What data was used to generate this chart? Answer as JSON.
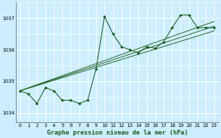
{
  "title": "Graphe pression niveau de la mer (hPa)",
  "bg_color": "#cceeff",
  "grid_color": "#ffffff",
  "line_color": "#1a5c1a",
  "marker_color": "#1a5c1a",
  "ylim": [
    1033.7,
    1037.5
  ],
  "yticks": [
    1034,
    1035,
    1036,
    1037
  ],
  "xlim": [
    -0.5,
    23.5
  ],
  "xticks": [
    0,
    1,
    2,
    3,
    4,
    5,
    6,
    7,
    8,
    9,
    10,
    11,
    12,
    13,
    14,
    15,
    16,
    17,
    18,
    19,
    20,
    21,
    22,
    23
  ],
  "series0": [
    1034.7,
    1034.6,
    1034.3,
    1034.8,
    1034.7,
    1034.4,
    1034.4,
    1034.3,
    1034.4,
    1035.4,
    1037.05,
    1036.5,
    1036.1,
    1036.0,
    1035.9,
    1036.1,
    1036.05,
    1036.25,
    1036.7,
    1037.1,
    1037.1,
    1036.7,
    1036.7,
    1036.7
  ],
  "trend_lines": [
    {
      "x": [
        0,
        23
      ],
      "y": [
        1034.7,
        1036.9
      ]
    },
    {
      "x": [
        0,
        23
      ],
      "y": [
        1034.7,
        1036.6
      ]
    },
    {
      "x": [
        0,
        23
      ],
      "y": [
        1034.7,
        1036.75
      ]
    }
  ],
  "title_fontsize": 6.5,
  "tick_fontsize": 5.0
}
